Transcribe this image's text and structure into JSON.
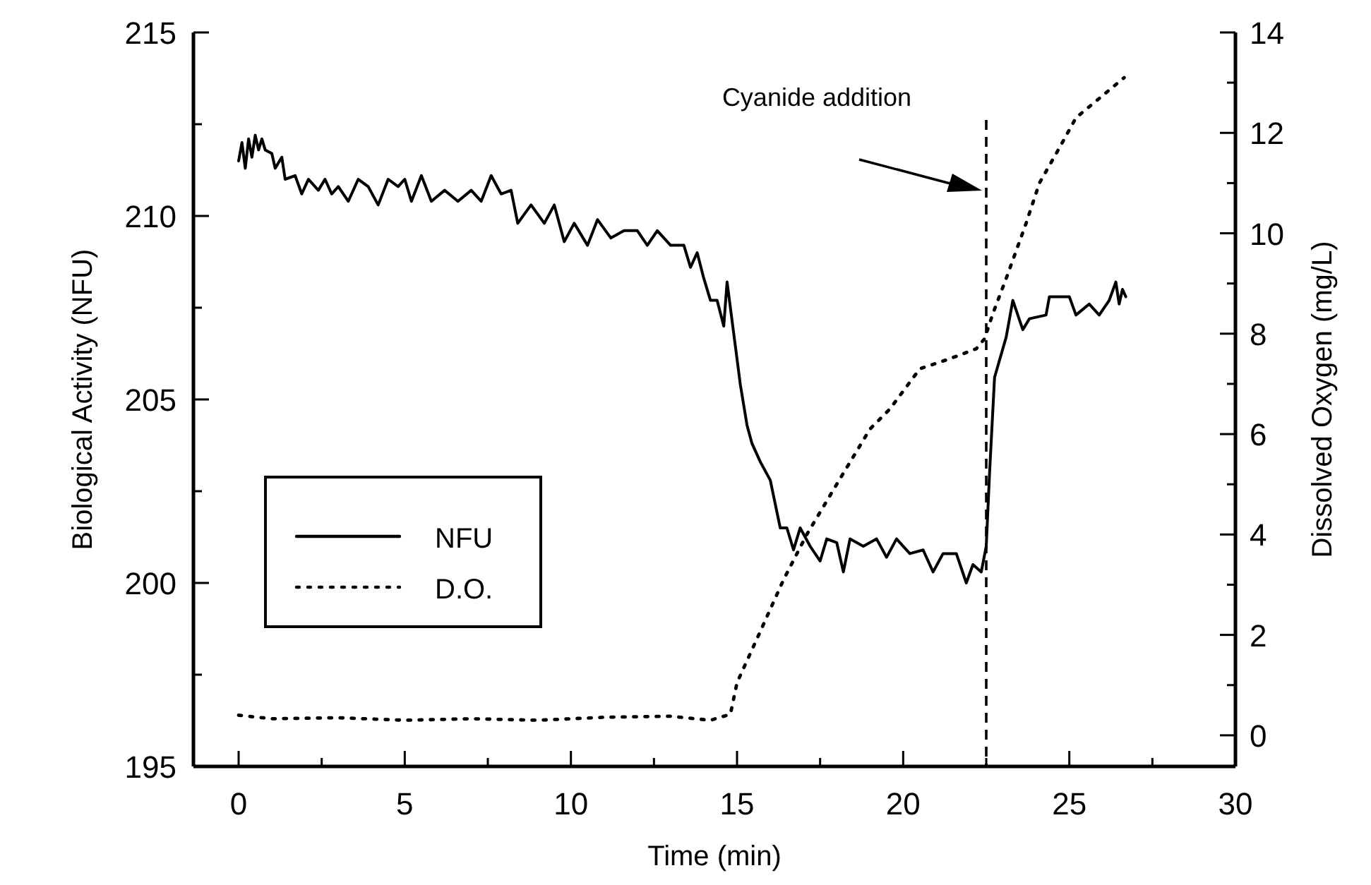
{
  "chart_data": {
    "type": "line",
    "xlabel": "Time (min)",
    "ylabel": "Biological Activity (NFU)",
    "y2label": "Dissolved Oxygen (mg/L)",
    "xlim": [
      -1.36,
      30
    ],
    "ylim": [
      195,
      215
    ],
    "y2lim": [
      -0.62,
      14
    ],
    "xticks": [
      0,
      {
        "value": 2.5,
        "label": null
      },
      5,
      {
        "value": 7.5,
        "label": null
      },
      10,
      {
        "value": 12.5,
        "label": null
      },
      15,
      {
        "value": 17.5,
        "label": null
      },
      20,
      {
        "value": 22.5,
        "label": null
      },
      25,
      {
        "value": 27.5,
        "label": null
      },
      30
    ],
    "yticks": [
      195,
      {
        "value": 197.5,
        "label": null
      },
      200,
      {
        "value": 202.5,
        "label": null
      },
      205,
      {
        "value": 207.5,
        "label": null
      },
      210,
      {
        "value": 212.5,
        "label": null
      },
      215
    ],
    "y2ticks": [
      0,
      {
        "value": 1,
        "label": null
      },
      2,
      {
        "value": 3,
        "label": null
      },
      4,
      {
        "value": 5,
        "label": null
      },
      6,
      {
        "value": 7,
        "label": null
      },
      8,
      {
        "value": 9,
        "label": null
      },
      10,
      {
        "value": 11,
        "label": null
      },
      12,
      {
        "value": 13,
        "label": null
      },
      14
    ],
    "grid": false,
    "legend": "left",
    "ref_lines": [
      {
        "axis": "x",
        "value": 22.5,
        "label": "Cyanide addition",
        "line_style": "dashed",
        "color": "#000000"
      }
    ],
    "series": [
      {
        "name": "NFU",
        "color": "#000000",
        "line_style": "solid",
        "x": [
          0,
          0.1,
          0.2,
          0.3,
          0.4,
          0.5,
          0.6,
          0.7,
          0.8,
          1.0,
          1.1,
          1.3,
          1.4,
          1.7,
          1.9,
          2.1,
          2.4,
          2.6,
          2.8,
          3.0,
          3.3,
          3.6,
          3.9,
          4.2,
          4.5,
          4.8,
          5.0,
          5.2,
          5.5,
          5.8,
          6.2,
          6.6,
          7.0,
          7.3,
          7.6,
          7.9,
          8.2,
          8.4,
          8.8,
          9.2,
          9.5,
          9.8,
          10.1,
          10.5,
          10.8,
          11.2,
          11.6,
          12.0,
          12.3,
          12.6,
          13.0,
          13.4,
          13.6,
          13.8,
          14.0,
          14.2,
          14.4,
          14.6,
          14.7,
          14.9,
          15.1,
          15.3,
          15.45,
          15.7,
          16.0,
          16.3,
          16.5,
          16.7,
          16.9,
          17.2,
          17.5,
          17.7,
          18.0,
          18.2,
          18.4,
          18.8,
          19.2,
          19.5,
          19.8,
          20.2,
          20.6,
          20.9,
          21.2,
          21.6,
          21.9,
          22.1,
          22.35,
          22.5,
          22.6,
          22.75,
          23.1,
          23.3,
          23.6,
          23.8,
          24.3,
          24.4,
          25.0,
          25.2,
          25.6,
          25.9,
          26.2,
          26.4,
          26.5,
          26.6,
          26.7
        ],
        "values": [
          211.5,
          212.0,
          211.3,
          212.1,
          211.6,
          212.2,
          211.8,
          212.1,
          211.8,
          211.7,
          211.3,
          211.6,
          211.0,
          211.1,
          210.6,
          211.0,
          210.7,
          211.0,
          210.6,
          210.8,
          210.4,
          211.0,
          210.8,
          210.3,
          211.0,
          210.8,
          211.0,
          210.4,
          211.1,
          210.4,
          210.7,
          210.4,
          210.7,
          210.4,
          211.1,
          210.6,
          210.7,
          209.8,
          210.3,
          209.8,
          210.3,
          209.3,
          209.8,
          209.2,
          209.9,
          209.4,
          209.6,
          209.6,
          209.2,
          209.6,
          209.2,
          209.2,
          208.6,
          209.0,
          208.3,
          207.7,
          207.7,
          207.0,
          208.2,
          206.8,
          205.4,
          204.3,
          203.8,
          203.3,
          202.8,
          201.5,
          201.5,
          200.9,
          201.5,
          201.0,
          200.6,
          201.2,
          201.1,
          200.3,
          201.2,
          201.0,
          201.2,
          200.7,
          201.2,
          200.8,
          200.9,
          200.3,
          200.8,
          200.8,
          200.0,
          200.5,
          200.3,
          201.0,
          203.0,
          205.6,
          206.7,
          207.7,
          206.9,
          207.2,
          207.3,
          207.8,
          207.8,
          207.3,
          207.6,
          207.3,
          207.7,
          208.2,
          207.6,
          208.0,
          207.8
        ]
      },
      {
        "name": "D.O.",
        "color": "#000000",
        "line_style": "dotted",
        "axis": "y2",
        "x": [
          0,
          1,
          3,
          5,
          7,
          9,
          11,
          13,
          14.2,
          14.8,
          15.0,
          15.7,
          16.4,
          17.1,
          18.0,
          19.0,
          19.6,
          20.5,
          21.4,
          22.2,
          22.45,
          22.7,
          23.1,
          23.7,
          24.1,
          24.7,
          25.2,
          26.65
        ],
        "values": [
          0.4,
          0.33,
          0.35,
          0.3,
          0.33,
          0.3,
          0.36,
          0.38,
          0.3,
          0.42,
          1.05,
          2.07,
          3.1,
          4.0,
          5.0,
          6.1,
          6.5,
          7.3,
          7.5,
          7.7,
          7.9,
          8.4,
          9.1,
          10.2,
          11.0,
          11.7,
          12.3,
          13.1
        ]
      }
    ]
  }
}
